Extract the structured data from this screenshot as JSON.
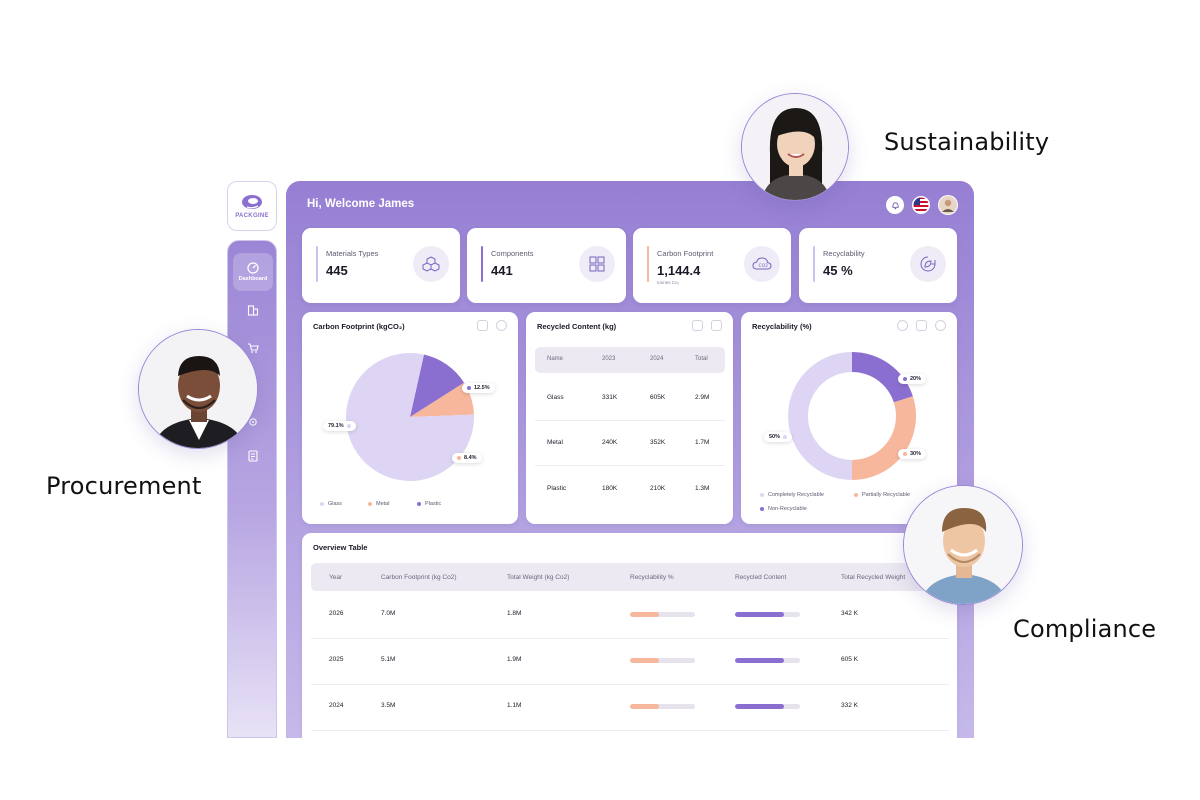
{
  "personas": {
    "sustainability": "Sustainability",
    "procurement": "Procurement",
    "compliance": "Compliance"
  },
  "brand": {
    "name": "PACKGINE"
  },
  "sidebar": {
    "items": [
      {
        "label": "Dashboard",
        "icon": "dashboard-icon",
        "active": true
      }
    ]
  },
  "header": {
    "welcome": "Hi, Welcome James"
  },
  "kpis": [
    {
      "label": "Materials Types",
      "value": "445",
      "color": "#cdbfee",
      "icon": "cubes-icon"
    },
    {
      "label": "Components",
      "value": "441",
      "color": "#8b6fd0",
      "icon": "puzzle-icon"
    },
    {
      "label": "Carbon Footprint",
      "value": "1,144.4",
      "sub": "tonnes Co₂",
      "color": "#f7b79c",
      "icon": "cloud-co2-icon"
    },
    {
      "label": "Recyclability",
      "value": "45 %",
      "color": "#cdbfee",
      "icon": "recycle-leaf-icon"
    }
  ],
  "carbon_card": {
    "title": "Carbon Footprint (kgCO₂)",
    "legend": [
      "Glass",
      "Metal",
      "Plastic"
    ],
    "labels": {
      "glass": "79.1%",
      "metal": "8.4%",
      "plastic": "12.5%"
    }
  },
  "recycled_card": {
    "title": "Recycled Content (kg)",
    "columns": [
      "Name",
      "2023",
      "2024",
      "Total"
    ],
    "rows": [
      [
        "Glass",
        "331K",
        "605K",
        "2.9M"
      ],
      [
        "Metal",
        "240K",
        "352K",
        "1.7M"
      ],
      [
        "Plastic",
        "180K",
        "210K",
        "1.3M"
      ]
    ]
  },
  "recyclability_card": {
    "title": "Recyclability (%)",
    "legend": [
      "Completely Recyclable",
      "Partially Recyclable",
      "Non-Recyclable"
    ],
    "labels": {
      "completely": "50%",
      "partially": "30%",
      "non": "20%"
    }
  },
  "overview": {
    "title": "Overview Table",
    "columns": [
      "Year",
      "Carbon Footprint (kg Co2)",
      "Total Weight (kg Co2)",
      "Recyclability %",
      "Recycled Content",
      "Total Recycled Weight"
    ],
    "rows": [
      {
        "year": "2026",
        "carbon": "7.0M",
        "weight": "1.8M",
        "recyclability": 0.45,
        "recycled": 0.75,
        "total": "342 K"
      },
      {
        "year": "2025",
        "carbon": "5.1M",
        "weight": "1.9M",
        "recyclability": 0.45,
        "recycled": 0.75,
        "total": "605 K"
      },
      {
        "year": "2024",
        "carbon": "3.5M",
        "weight": "1.1M",
        "recyclability": 0.45,
        "recycled": 0.75,
        "total": "332 K"
      }
    ]
  },
  "colors": {
    "accent": "#8b6fd0",
    "lavender": "#ddd5f3",
    "peach": "#f7b79c"
  },
  "chart_data": [
    {
      "type": "pie",
      "title": "Carbon Footprint (kgCO₂)",
      "categories": [
        "Glass",
        "Metal",
        "Plastic"
      ],
      "values": [
        79.1,
        8.4,
        12.5
      ],
      "colors": [
        "#ddd5f3",
        "#f7b79c",
        "#8b6fd0"
      ],
      "legend": "bottom"
    },
    {
      "type": "pie",
      "title": "Recyclability (%)",
      "categories": [
        "Completely Recyclable",
        "Partially Recyclable",
        "Non-Recyclable"
      ],
      "values": [
        50,
        30,
        20
      ],
      "colors": [
        "#ddd5f3",
        "#f7b79c",
        "#8b6fd0"
      ],
      "legend": "bottom"
    }
  ]
}
